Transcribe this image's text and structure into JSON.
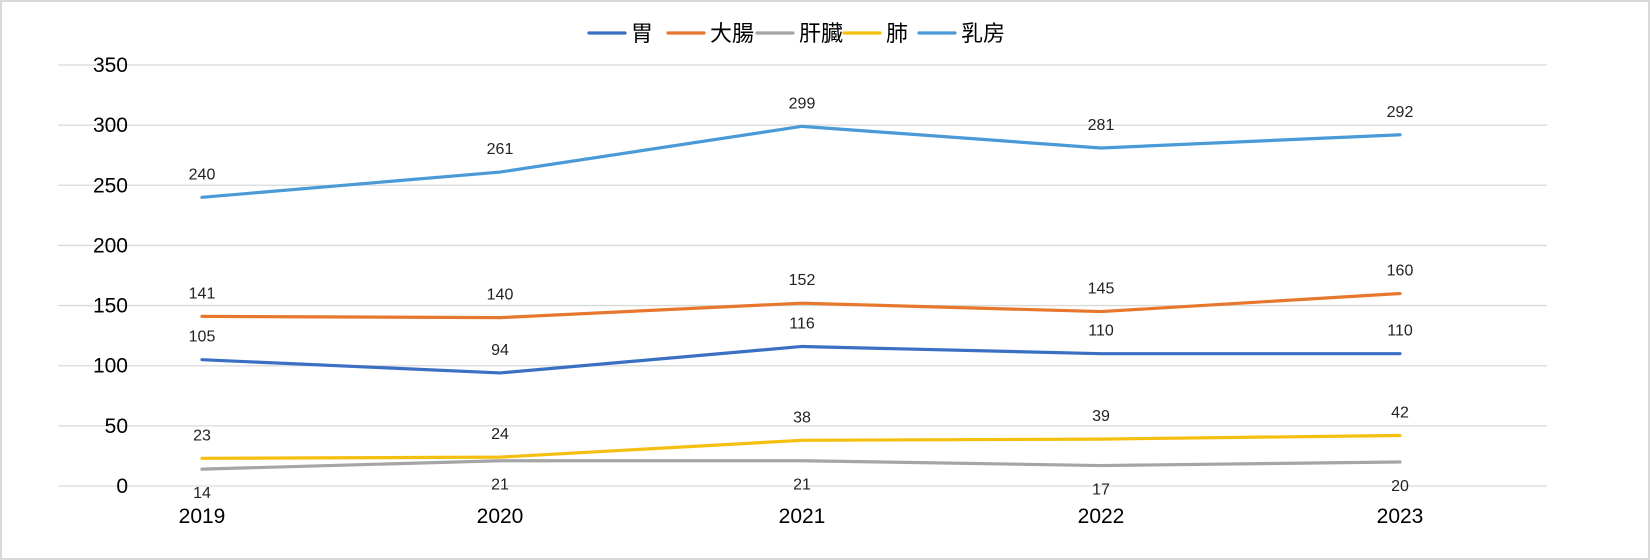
{
  "chart_data": {
    "type": "line",
    "title": "",
    "xlabel": "",
    "ylabel": "",
    "categories": [
      "2019",
      "2020",
      "2021",
      "2022",
      "2023"
    ],
    "ylim": [
      0,
      350
    ],
    "yticks": [
      0,
      50,
      100,
      150,
      200,
      250,
      300,
      350
    ],
    "grid": true,
    "legend_position": "top-center",
    "series": [
      {
        "name": "胃",
        "color": "#3a6fc4",
        "values": [
          105,
          94,
          116,
          110,
          110
        ]
      },
      {
        "name": "大腸",
        "color": "#e8772e",
        "values": [
          141,
          140,
          152,
          145,
          160
        ]
      },
      {
        "name": "肝臓",
        "color": "#a5a5a5",
        "values": [
          14,
          21,
          21,
          17,
          20
        ]
      },
      {
        "name": "肺",
        "color": "#f5bf0f",
        "values": [
          23,
          24,
          38,
          39,
          42
        ]
      },
      {
        "name": "乳房",
        "color": "#4a9ad8",
        "values": [
          240,
          261,
          299,
          281,
          292
        ]
      }
    ]
  }
}
